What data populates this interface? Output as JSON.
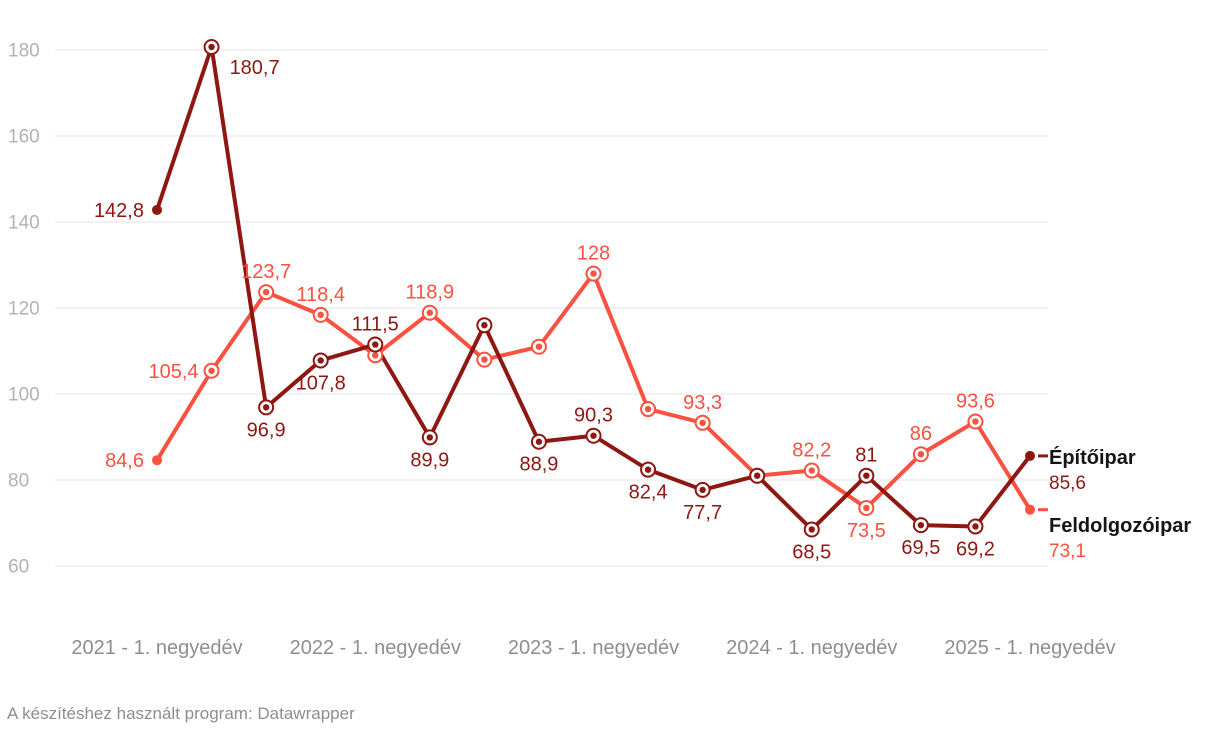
{
  "page": {
    "background": "#ffffff"
  },
  "footer": {
    "text": "A készítéshez használt program: Datawrapper"
  },
  "chart_data": {
    "type": "line",
    "title": "",
    "grid": true,
    "legend_position": "right-end-labels",
    "x_axis": {
      "n_points": 17,
      "points_per_year": 4,
      "ticks": [
        {
          "index": 0,
          "label": "2021 - 1. negyedév"
        },
        {
          "index": 4,
          "label": "2022 - 1. negyedév"
        },
        {
          "index": 8,
          "label": "2023 - 1. negyedév"
        },
        {
          "index": 12,
          "label": "2024 - 1. negyedév"
        },
        {
          "index": 16,
          "label": "2025 - 1. negyedév"
        }
      ]
    },
    "y_axis": {
      "ticks": [
        180,
        160,
        140,
        120,
        100,
        80,
        60
      ],
      "range": [
        57,
        185
      ]
    },
    "series": [
      {
        "id": "epitoipar",
        "name": "Építőipar",
        "color": "#8e1712",
        "values": [
          142.8,
          180.7,
          96.9,
          107.8,
          111.5,
          89.9,
          116,
          88.9,
          90.3,
          82.4,
          77.7,
          81,
          68.5,
          81,
          69.5,
          69.2,
          85.6
        ],
        "point_labels": [
          {
            "i": 0,
            "text": "142,8",
            "pos": "left"
          },
          {
            "i": 1,
            "text": "180,7",
            "pos": "right"
          },
          {
            "i": 2,
            "text": "96,9",
            "pos": "below"
          },
          {
            "i": 3,
            "text": "107,8",
            "pos": "below"
          },
          {
            "i": 4,
            "text": "111,5",
            "pos": "above"
          },
          {
            "i": 5,
            "text": "89,9",
            "pos": "below"
          },
          {
            "i": 7,
            "text": "88,9",
            "pos": "below"
          },
          {
            "i": 8,
            "text": "90,3",
            "pos": "above"
          },
          {
            "i": 9,
            "text": "82,4",
            "pos": "below"
          },
          {
            "i": 10,
            "text": "77,7",
            "pos": "below"
          },
          {
            "i": 12,
            "text": "68,5",
            "pos": "below"
          },
          {
            "i": 13,
            "text": "81",
            "pos": "above"
          },
          {
            "i": 14,
            "text": "69,5",
            "pos": "below"
          },
          {
            "i": 15,
            "text": "69,2",
            "pos": "below"
          }
        ],
        "end_label": "Építőipar",
        "end_value": "85,6"
      },
      {
        "id": "feldolgozoipar",
        "name": "Feldolgozóipar",
        "color": "#fa5140",
        "values": [
          84.6,
          105.4,
          123.7,
          118.4,
          109,
          118.9,
          108,
          111,
          128,
          96.5,
          93.3,
          81,
          82.2,
          73.5,
          86,
          93.6,
          73.1
        ],
        "point_labels": [
          {
            "i": 0,
            "text": "84,6",
            "pos": "left"
          },
          {
            "i": 1,
            "text": "105,4",
            "pos": "left"
          },
          {
            "i": 2,
            "text": "123,7",
            "pos": "above"
          },
          {
            "i": 3,
            "text": "118,4",
            "pos": "above"
          },
          {
            "i": 5,
            "text": "118,9",
            "pos": "above"
          },
          {
            "i": 8,
            "text": "128",
            "pos": "above"
          },
          {
            "i": 10,
            "text": "93,3",
            "pos": "above"
          },
          {
            "i": 12,
            "text": "82,2",
            "pos": "above"
          },
          {
            "i": 13,
            "text": "73,5",
            "pos": "below"
          },
          {
            "i": 14,
            "text": "86",
            "pos": "above"
          },
          {
            "i": 15,
            "text": "93,6",
            "pos": "above"
          }
        ],
        "end_label": "Feldolgozóipar",
        "end_value": "73,1"
      }
    ]
  }
}
